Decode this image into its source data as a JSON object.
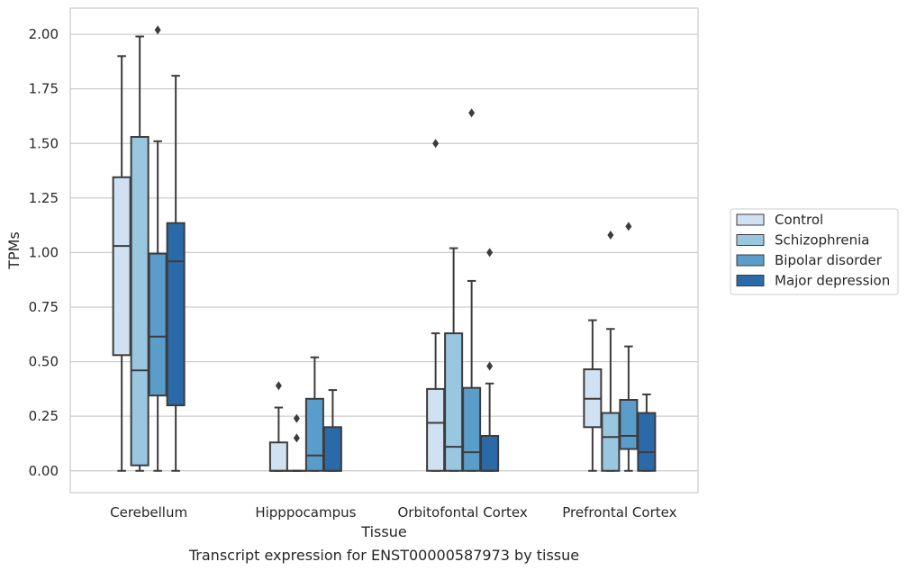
{
  "chart_data": {
    "type": "box",
    "caption": "Transcript expression for ENST00000587973 by tissue",
    "xlabel": "Tissue",
    "ylabel": "TPMs",
    "ylim": [
      -0.1,
      2.12
    ],
    "yticks": [
      "0.00",
      "0.25",
      "0.50",
      "0.75",
      "1.00",
      "1.25",
      "1.50",
      "1.75",
      "2.00"
    ],
    "ytick_values": [
      0,
      0.25,
      0.5,
      0.75,
      1.0,
      1.25,
      1.5,
      1.75,
      2.0
    ],
    "grid": true,
    "legend_position": "right",
    "categories": [
      "Cerebellum",
      "Hipppocampus",
      "Orbitofontal Cortex",
      "Prefrontal Cortex"
    ],
    "series": [
      {
        "name": "Control",
        "color": "#d0e1f2",
        "boxes": [
          {
            "whislo": 0.0,
            "q1": 0.53,
            "med": 1.03,
            "q3": 1.345,
            "whishi": 1.9,
            "fliers": []
          },
          {
            "whislo": 0.0,
            "q1": 0.0,
            "med": 0.0,
            "q3": 0.13,
            "whishi": 0.29,
            "fliers": [
              0.39
            ]
          },
          {
            "whislo": 0.0,
            "q1": 0.0,
            "med": 0.22,
            "q3": 0.375,
            "whishi": 0.63,
            "fliers": [
              1.5
            ]
          },
          {
            "whislo": 0.0,
            "q1": 0.2,
            "med": 0.33,
            "q3": 0.465,
            "whishi": 0.69,
            "fliers": []
          }
        ]
      },
      {
        "name": "Schizophrenia",
        "color": "#9ac7e0",
        "boxes": [
          {
            "whislo": 0.0,
            "q1": 0.025,
            "med": 0.46,
            "q3": 1.53,
            "whishi": 1.99,
            "fliers": []
          },
          {
            "whislo": 0.0,
            "q1": 0.0,
            "med": 0.0,
            "q3": 0.0,
            "whishi": 0.0,
            "fliers": [
              0.24,
              0.15
            ]
          },
          {
            "whislo": 0.0,
            "q1": 0.0,
            "med": 0.11,
            "q3": 0.63,
            "whishi": 1.02,
            "fliers": []
          },
          {
            "whislo": 0.0,
            "q1": 0.0,
            "med": 0.155,
            "q3": 0.265,
            "whishi": 0.65,
            "fliers": [
              1.08
            ]
          }
        ]
      },
      {
        "name": "Bipolar disorder",
        "color": "#5a9dcb",
        "boxes": [
          {
            "whislo": 0.0,
            "q1": 0.345,
            "med": 0.615,
            "q3": 0.995,
            "whishi": 1.51,
            "fliers": [
              2.02
            ]
          },
          {
            "whislo": 0.0,
            "q1": 0.0,
            "med": 0.07,
            "q3": 0.33,
            "whishi": 0.52,
            "fliers": []
          },
          {
            "whislo": 0.0,
            "q1": 0.0,
            "med": 0.085,
            "q3": 0.38,
            "whishi": 0.87,
            "fliers": [
              1.64
            ]
          },
          {
            "whislo": 0.0,
            "q1": 0.1,
            "med": 0.16,
            "q3": 0.325,
            "whishi": 0.57,
            "fliers": [
              1.12
            ]
          }
        ]
      },
      {
        "name": "Major depression",
        "color": "#2b6aa8",
        "boxes": [
          {
            "whislo": 0.0,
            "q1": 0.3,
            "med": 0.96,
            "q3": 1.135,
            "whishi": 1.81,
            "fliers": []
          },
          {
            "whislo": 0.0,
            "q1": 0.0,
            "med": 0.0,
            "q3": 0.2,
            "whishi": 0.37,
            "fliers": []
          },
          {
            "whislo": 0.0,
            "q1": 0.0,
            "med": 0.0,
            "q3": 0.16,
            "whishi": 0.4,
            "fliers": [
              1.0,
              0.48
            ]
          },
          {
            "whislo": 0.0,
            "q1": 0.0,
            "med": 0.085,
            "q3": 0.265,
            "whishi": 0.35,
            "fliers": []
          }
        ]
      }
    ]
  }
}
